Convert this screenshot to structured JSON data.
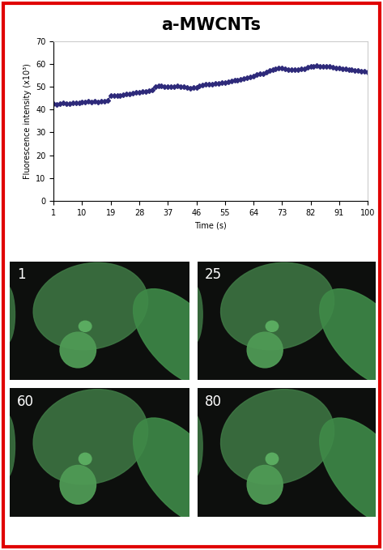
{
  "chart_data": {
    "type": "line",
    "title": "a-MWCNTs",
    "x_label": "Time (s)",
    "y_label": "Fluorescence intensity (x10³)",
    "x": [
      1,
      2,
      3,
      4,
      5,
      6,
      7,
      8,
      9,
      10,
      11,
      12,
      13,
      14,
      15,
      16,
      17,
      18,
      19,
      20,
      21,
      22,
      23,
      24,
      25,
      26,
      27,
      28,
      29,
      30,
      31,
      32,
      33,
      34,
      35,
      36,
      37,
      38,
      39,
      40,
      41,
      42,
      43,
      44,
      45,
      46,
      47,
      48,
      49,
      50,
      51,
      52,
      53,
      54,
      55,
      56,
      57,
      58,
      59,
      60,
      61,
      62,
      63,
      64,
      65,
      66,
      67,
      68,
      69,
      70,
      71,
      72,
      73,
      74,
      75,
      76,
      77,
      78,
      79,
      80,
      81,
      82,
      83,
      84,
      85,
      86,
      87,
      88,
      89,
      90,
      91,
      92,
      93,
      94,
      95,
      96,
      97,
      98,
      99,
      100
    ],
    "values": [
      42.5,
      42.3,
      42.6,
      42.8,
      42.5,
      42.7,
      43.0,
      42.9,
      43.1,
      43.4,
      43.2,
      43.5,
      43.3,
      43.6,
      43.4,
      43.5,
      43.8,
      44.0,
      46.0,
      46.2,
      46.0,
      46.3,
      46.5,
      46.8,
      47.0,
      47.2,
      47.5,
      47.6,
      47.8,
      48.0,
      48.3,
      48.6,
      50.2,
      50.4,
      50.3,
      50.1,
      50.0,
      50.2,
      50.1,
      50.3,
      50.0,
      50.2,
      49.8,
      49.5,
      49.6,
      49.8,
      50.5,
      50.8,
      51.0,
      51.2,
      51.3,
      51.5,
      51.6,
      51.8,
      52.0,
      52.3,
      52.5,
      52.8,
      53.0,
      53.2,
      53.5,
      53.8,
      54.2,
      54.8,
      55.3,
      55.6,
      55.9,
      56.5,
      57.2,
      57.6,
      58.0,
      58.2,
      58.3,
      57.8,
      57.6,
      57.5,
      57.7,
      57.6,
      57.8,
      58.0,
      58.5,
      58.8,
      59.0,
      59.2,
      59.0,
      59.1,
      58.8,
      58.9,
      58.6,
      58.4,
      58.2,
      58.0,
      57.9,
      57.7,
      57.5,
      57.3,
      57.0,
      56.9,
      56.7,
      56.5
    ],
    "color": "#2e2a7a",
    "marker": "diamond",
    "line_style": "solid",
    "xlim": [
      1,
      100
    ],
    "xticks": [
      1,
      10,
      19,
      28,
      37,
      46,
      55,
      64,
      73,
      82,
      91,
      100
    ],
    "ylim": [
      0,
      70
    ],
    "yticks": [
      0,
      10,
      20,
      30,
      40,
      50,
      60,
      70
    ],
    "grid": false
  },
  "image_panels": {
    "labels": [
      "1",
      "25",
      "60",
      "80"
    ]
  }
}
